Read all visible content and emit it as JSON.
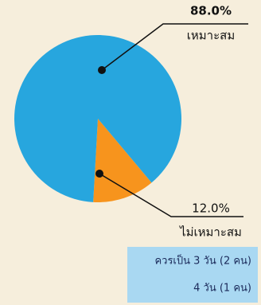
{
  "chart_data": {
    "type": "pie",
    "categories": [
      "เหมาะสม",
      "ไม่เหมาะสม"
    ],
    "values": [
      88.0,
      12.0
    ],
    "value_labels": [
      "88.0%",
      "12.0%"
    ],
    "colors": [
      "#27a6de",
      "#f7941d"
    ],
    "annotations": [
      "ควรเป็น 3 วัน (2 คน)",
      "4 วัน (1 คน)"
    ]
  }
}
